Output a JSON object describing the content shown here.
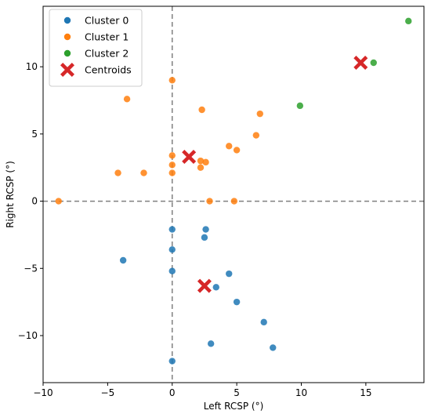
{
  "chart_data": {
    "type": "scatter",
    "xlabel": "Left RCSP (°)",
    "ylabel": "Right RCSP (°)",
    "xlim": [
      -10,
      19.5
    ],
    "ylim": [
      -13.5,
      14.5
    ],
    "xticks": [
      -10,
      -5,
      0,
      5,
      10,
      15
    ],
    "yticks": [
      -10,
      -5,
      0,
      5,
      10
    ],
    "legend_position": "top-left",
    "reference_lines": {
      "x": 0,
      "y": 0,
      "style": "dashed",
      "color": "#808080"
    },
    "series": [
      {
        "name": "Cluster 0",
        "color": "#1f77b4",
        "marker": "circle",
        "points": [
          [
            0,
            -2.1
          ],
          [
            2.6,
            -2.1
          ],
          [
            2.5,
            -2.7
          ],
          [
            0,
            -3.6
          ],
          [
            -3.8,
            -4.4
          ],
          [
            0,
            -5.2
          ],
          [
            4.4,
            -5.4
          ],
          [
            3.4,
            -6.4
          ],
          [
            5,
            -7.5
          ],
          [
            7.1,
            -9
          ],
          [
            7.8,
            -10.9
          ],
          [
            3,
            -10.6
          ],
          [
            0,
            -11.9
          ]
        ]
      },
      {
        "name": "Cluster 1",
        "color": "#ff7f0e",
        "marker": "circle",
        "points": [
          [
            0,
            9
          ],
          [
            -3.5,
            7.6
          ],
          [
            2.3,
            6.8
          ],
          [
            6.8,
            6.5
          ],
          [
            6.5,
            4.9
          ],
          [
            4.4,
            4.1
          ],
          [
            5,
            3.8
          ],
          [
            0,
            3.4
          ],
          [
            2.2,
            3
          ],
          [
            2.6,
            2.9
          ],
          [
            0,
            2.7
          ],
          [
            2.2,
            2.5
          ],
          [
            0,
            2.1
          ],
          [
            -4.2,
            2.1
          ],
          [
            -2.2,
            2.1
          ],
          [
            -8.8,
            0
          ],
          [
            2.9,
            0
          ],
          [
            4.8,
            0
          ]
        ]
      },
      {
        "name": "Cluster 2",
        "color": "#2ca02c",
        "marker": "circle",
        "points": [
          [
            18.3,
            13.4
          ],
          [
            15.6,
            10.3
          ],
          [
            9.9,
            7.1
          ]
        ]
      },
      {
        "name": "Centroids",
        "color": "#d62728",
        "marker": "x",
        "points": [
          [
            14.6,
            10.3
          ],
          [
            1.3,
            3.3
          ],
          [
            2.5,
            -6.3
          ]
        ]
      }
    ]
  }
}
